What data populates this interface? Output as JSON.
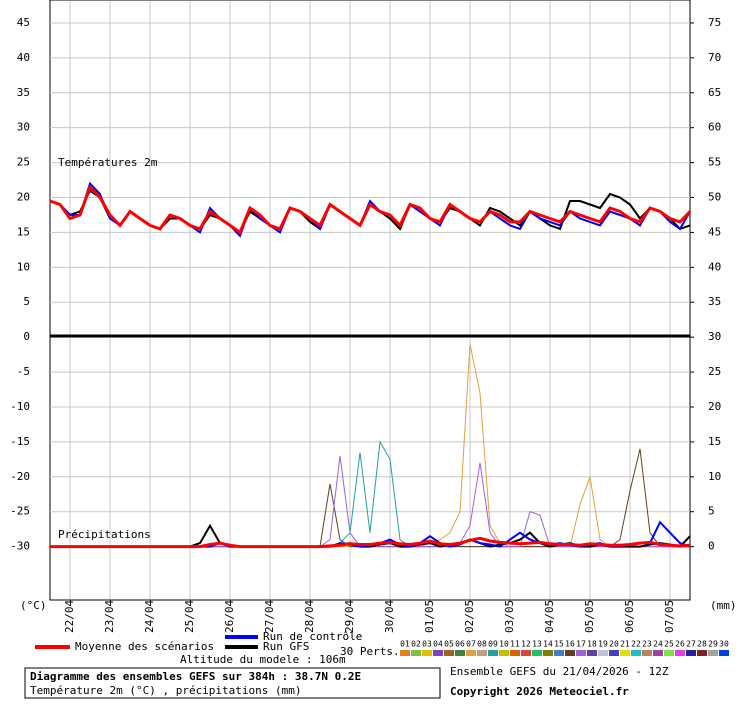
{
  "chart_data": {
    "type": "line",
    "panel_labels": [
      "Températures 2m",
      "Précipitations"
    ],
    "y_unit": "(°C)",
    "y2_unit": "(mm)",
    "ylim": [
      -37.5,
      48
    ],
    "yticks": [
      45,
      40,
      35,
      30,
      25,
      20,
      15,
      10,
      5,
      0,
      -5,
      -10,
      -15,
      -20,
      -25,
      -30
    ],
    "y2lim": [
      -7.5,
      78
    ],
    "y2ticks": [
      75,
      70,
      65,
      60,
      55,
      50,
      45,
      40,
      35,
      30,
      25,
      20,
      15,
      10,
      5,
      0
    ],
    "xlim": [
      0,
      16
    ],
    "xticks": [
      {
        "value": 0.5,
        "label": "22/04"
      },
      {
        "value": 1.5,
        "label": "23/04"
      },
      {
        "value": 2.5,
        "label": "24/04"
      },
      {
        "value": 3.5,
        "label": "25/04"
      },
      {
        "value": 4.5,
        "label": "26/04"
      },
      {
        "value": 5.5,
        "label": "27/04"
      },
      {
        "value": 6.5,
        "label": "28/04"
      },
      {
        "value": 7.5,
        "label": "29/04"
      },
      {
        "value": 8.5,
        "label": "30/04"
      },
      {
        "value": 9.5,
        "label": "01/05"
      },
      {
        "value": 10.5,
        "label": "02/05"
      },
      {
        "value": 11.5,
        "label": "03/05"
      },
      {
        "value": 12.5,
        "label": "04/05"
      },
      {
        "value": 13.5,
        "label": "05/05"
      },
      {
        "value": 14.5,
        "label": "06/05"
      },
      {
        "value": 15.5,
        "label": "07/05"
      }
    ],
    "grid": true,
    "series": [
      {
        "name": "Moyenne des scénarios",
        "color": "#ff0000",
        "temp": [
          19.5,
          19,
          17,
          17.5,
          21.5,
          20,
          17.5,
          16,
          18,
          17,
          16,
          15.5,
          17.5,
          17,
          16,
          15.5,
          18,
          17,
          16,
          15,
          18.5,
          17.5,
          16,
          15.5,
          18.5,
          18,
          17,
          16,
          19,
          18,
          17,
          16,
          19,
          18,
          17.5,
          16,
          19,
          18.5,
          17,
          16.5,
          19,
          18,
          17,
          16.5,
          18,
          17.5,
          16.5,
          16.5,
          18,
          17.5,
          17,
          16.5,
          18,
          17.5,
          17,
          16.5,
          18.5,
          18,
          17,
          16.5,
          18.5,
          18,
          17,
          16.5,
          18
        ],
        "precip": [
          0,
          0,
          0,
          0,
          0,
          0,
          0,
          0,
          0,
          0,
          0,
          0,
          0,
          0,
          0,
          0,
          0.3,
          0.5,
          0.2,
          0,
          0,
          0,
          0,
          0,
          0,
          0,
          0,
          0,
          0.1,
          0.2,
          0.4,
          0.3,
          0.3,
          0.5,
          0.6,
          0.4,
          0.3,
          0.5,
          0.8,
          0.4,
          0.3,
          0.5,
          0.9,
          1.2,
          0.8,
          0.6,
          0.5,
          0.4,
          0.5,
          0.6,
          0.4,
          0.3,
          0.3,
          0.2,
          0.4,
          0.3,
          0.2,
          0.2,
          0.3,
          0.5,
          0.6,
          0.3,
          0.2,
          0.1,
          0.2
        ]
      },
      {
        "name": "Run de contrôle",
        "color": "#0000ff",
        "temp": [
          19.5,
          19,
          17.5,
          17.5,
          22,
          20.5,
          17,
          16,
          18,
          17,
          16,
          15.5,
          17.5,
          17,
          16,
          15,
          18.5,
          17,
          16,
          14.5,
          18.5,
          17,
          16,
          15,
          18.5,
          18,
          17,
          15.5,
          19,
          18,
          17,
          16,
          19.5,
          18,
          17.5,
          16,
          19,
          18,
          17,
          16,
          19,
          18,
          17,
          16.5,
          18,
          17,
          16,
          15.5,
          18,
          17,
          16.5,
          16,
          18,
          17,
          16.5,
          16,
          18,
          17.5,
          17,
          16,
          18.5,
          18,
          16.5,
          15.5,
          18
        ],
        "precip": [
          0,
          0,
          0,
          0,
          0,
          0,
          0,
          0,
          0,
          0,
          0,
          0,
          0,
          0,
          0,
          0,
          0,
          0.5,
          0,
          0,
          0,
          0,
          0,
          0,
          0,
          0,
          0,
          0,
          0,
          0.5,
          0.3,
          0,
          0.2,
          0.5,
          1,
          0.3,
          0,
          0.5,
          1.5,
          0.5,
          0,
          0.3,
          1,
          0.5,
          0.3,
          0,
          1,
          2,
          1,
          0.5,
          0.3,
          0.5,
          0.2,
          0,
          0.3,
          0.5,
          0,
          0,
          0.3,
          0.5,
          0.5,
          3.5,
          2,
          0.5,
          0
        ]
      },
      {
        "name": "Run GFS",
        "color": "#000000",
        "temp": [
          19.5,
          19,
          17.5,
          18,
          21,
          20,
          17,
          16,
          18,
          17,
          16,
          15.5,
          17,
          17,
          16,
          15.5,
          17.5,
          17,
          16,
          15,
          18,
          17,
          16,
          15.5,
          18.5,
          18,
          16.5,
          15.5,
          19,
          18,
          17,
          16,
          19,
          18,
          17,
          15.5,
          19,
          18.5,
          17,
          16.5,
          18.5,
          18,
          17,
          16,
          18.5,
          18,
          17,
          16,
          18,
          17,
          16,
          15.5,
          19.5,
          19.5,
          19,
          18.5,
          20.5,
          20,
          19,
          17,
          18.5,
          18,
          17,
          15.5,
          16
        ],
        "precip": [
          0,
          0,
          0,
          0,
          0,
          0,
          0,
          0,
          0,
          0,
          0,
          0,
          0,
          0,
          0,
          0.5,
          3,
          0.5,
          0,
          0,
          0,
          0,
          0,
          0,
          0,
          0,
          0,
          0,
          0,
          0.3,
          0.5,
          0,
          0,
          0.3,
          0.5,
          0,
          0,
          0.3,
          0.5,
          0,
          0.3,
          0.5,
          1,
          0.5,
          0,
          0.3,
          0.5,
          1,
          2,
          0.5,
          0,
          0.3,
          0.5,
          0,
          0,
          0.3,
          0,
          0,
          0,
          0,
          0.3,
          0.5,
          0.3,
          0,
          1.5
        ]
      }
    ],
    "perturbations_label": "30 Perts.",
    "perturbations": [
      {
        "name": "01",
        "color": "#e08020"
      },
      {
        "name": "02",
        "color": "#80c040"
      },
      {
        "name": "03",
        "color": "#e0c000"
      },
      {
        "name": "04",
        "color": "#8040c0"
      },
      {
        "name": "05",
        "color": "#a06020"
      },
      {
        "name": "06",
        "color": "#408040"
      },
      {
        "name": "07",
        "color": "#e0a040",
        "precip": [
          0,
          0,
          0,
          0,
          0,
          0,
          0,
          0,
          0,
          0,
          0,
          0,
          0,
          0,
          0,
          0,
          0,
          0,
          0,
          0,
          0,
          0,
          0,
          0,
          0,
          0,
          0,
          0,
          0,
          0,
          0,
          0,
          0,
          0,
          0,
          0,
          0,
          0,
          0.5,
          1,
          2,
          5,
          29,
          22,
          3,
          0.5,
          0,
          0,
          0,
          0,
          0,
          0,
          0,
          6,
          10,
          1,
          0,
          0,
          0,
          0,
          0,
          0,
          0,
          0,
          0
        ]
      },
      {
        "name": "08",
        "color": "#c0a080"
      },
      {
        "name": "09",
        "color": "#20a0a0",
        "precip": [
          0,
          0,
          0,
          0,
          0,
          0,
          0,
          0,
          0,
          0,
          0,
          0,
          0,
          0,
          0,
          0,
          0,
          0,
          0,
          0,
          0,
          0,
          0,
          0,
          0,
          0,
          0,
          0,
          0,
          0.5,
          2,
          13.5,
          2,
          15,
          12.5,
          1,
          0,
          0,
          0,
          0,
          0,
          0,
          0,
          0,
          0,
          0,
          0,
          0,
          0,
          0,
          0,
          0,
          0,
          0,
          0,
          0,
          0,
          0,
          0,
          0,
          0,
          0,
          0,
          0,
          0
        ]
      },
      {
        "name": "10",
        "color": "#c0c000"
      },
      {
        "name": "11",
        "color": "#e06000"
      },
      {
        "name": "12",
        "color": "#e04040"
      },
      {
        "name": "13",
        "color": "#20c060"
      },
      {
        "name": "14",
        "color": "#808000"
      },
      {
        "name": "15",
        "color": "#4080c0"
      },
      {
        "name": "16",
        "color": "#604020",
        "precip": [
          0,
          0,
          0,
          0,
          0,
          0,
          0,
          0,
          0,
          0,
          0,
          0,
          0,
          0,
          0,
          0,
          0,
          0,
          0,
          0,
          0,
          0,
          0,
          0,
          0,
          0,
          0,
          0,
          9,
          1,
          0,
          0,
          0,
          0,
          0,
          0,
          0,
          0,
          0,
          0,
          0,
          0,
          0,
          0,
          0,
          0,
          0,
          0,
          0,
          0,
          0,
          0,
          0,
          0,
          0,
          0,
          0,
          1,
          8,
          14,
          2,
          0,
          0,
          0,
          0
        ]
      },
      {
        "name": "17",
        "color": "#a060e0",
        "precip": [
          0,
          0,
          0,
          0,
          0,
          0,
          0,
          0,
          0,
          0,
          0,
          0,
          0,
          0,
          0,
          0,
          0,
          0,
          0,
          0,
          0,
          0,
          0,
          0,
          0,
          0,
          0,
          0,
          1,
          13,
          2,
          0,
          0,
          0,
          0,
          0,
          0,
          0,
          0,
          0,
          0,
          0.5,
          3,
          12,
          2,
          0,
          0,
          0,
          5,
          4.5,
          0,
          0,
          0,
          0,
          0,
          0,
          0,
          0,
          0,
          0,
          0,
          0,
          0,
          0,
          0
        ]
      },
      {
        "name": "18",
        "color": "#6040a0"
      },
      {
        "name": "19",
        "color": "#c0c0e0"
      },
      {
        "name": "20",
        "color": "#4040c0"
      },
      {
        "name": "21",
        "color": "#e0e000"
      },
      {
        "name": "22",
        "color": "#20c0c0"
      },
      {
        "name": "23",
        "color": "#c08060"
      },
      {
        "name": "24",
        "color": "#a040a0"
      },
      {
        "name": "25",
        "color": "#80e040"
      },
      {
        "name": "26",
        "color": "#e040e0"
      },
      {
        "name": "27",
        "color": "#2020a0"
      },
      {
        "name": "28",
        "color": "#802020"
      },
      {
        "name": "29",
        "color": "#a0a0a0"
      },
      {
        "name": "30",
        "color": "#0040e0"
      }
    ],
    "altitude": "Altitude du modele : 106m",
    "title": "Diagramme des ensembles GEFS sur 384h : 38.7N 0.2E",
    "subtitle": "Température 2m (°C) , précipitations (mm)",
    "run": "Ensemble GEFS du 21/04/2026 - 12Z",
    "copyright": "Copyright 2026 Meteociel.fr"
  }
}
